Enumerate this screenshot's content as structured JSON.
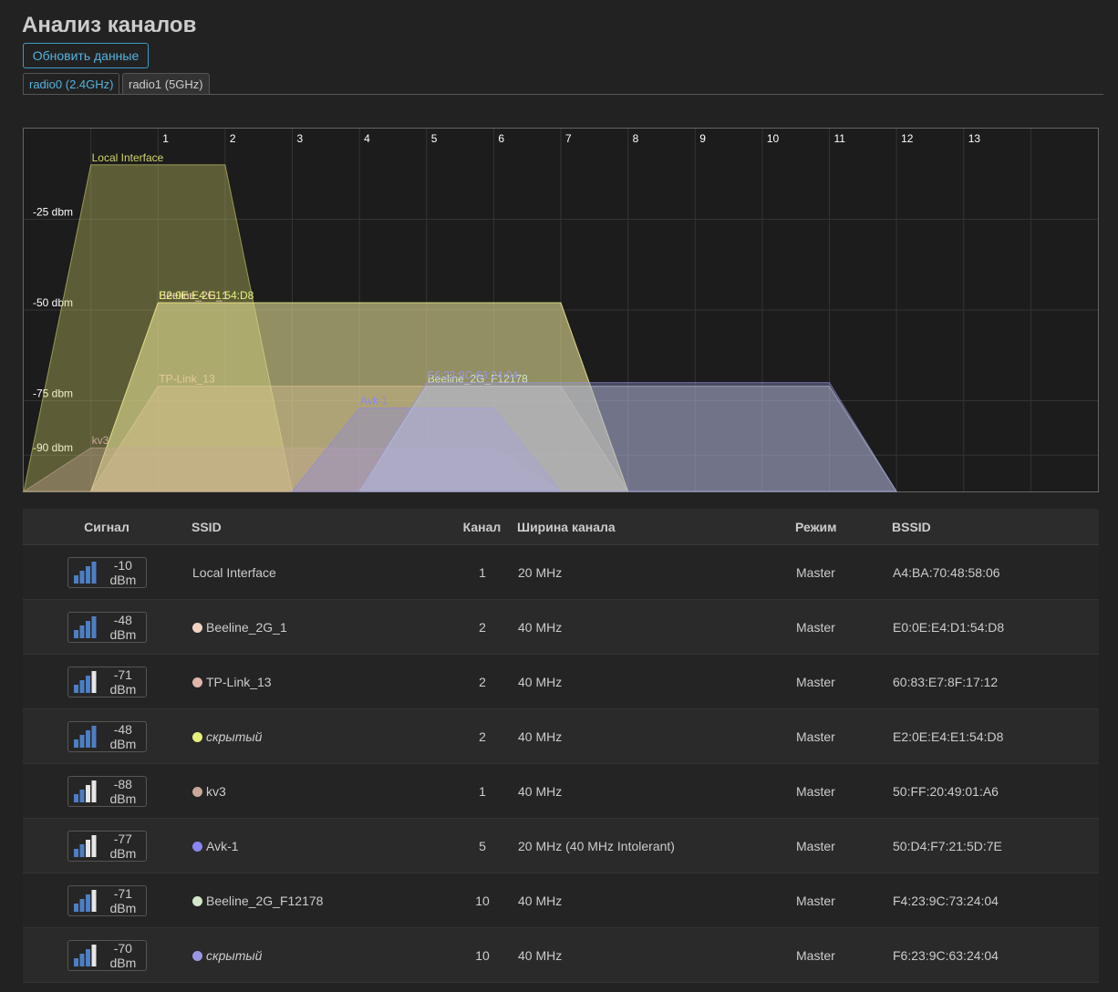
{
  "header": {
    "title": "Анализ каналов",
    "refresh_button": "Обновить данные",
    "tabs": [
      "radio0 (2.4GHz)",
      "radio1 (5GHz)"
    ]
  },
  "chart_data": {
    "type": "channel-spectrum",
    "xlim": [
      -1,
      15
    ],
    "xticks": [
      1,
      2,
      3,
      4,
      5,
      6,
      7,
      8,
      9,
      10,
      11,
      12,
      13
    ],
    "ylim": [
      -100,
      0
    ],
    "yticks": [
      {
        "value": -25,
        "label": "-25 dbm"
      },
      {
        "value": -50,
        "label": "-50 dbm"
      },
      {
        "value": -75,
        "label": "-75 dbm"
      },
      {
        "value": -90,
        "label": "-90 dbm"
      }
    ],
    "grid": true,
    "series": [
      {
        "name": "Local Interface",
        "color": "#d4d46a",
        "signal": -10,
        "channel": 1,
        "width": 20
      },
      {
        "name": "Beeline_2G_1",
        "color": "#f2d2c2",
        "signal": -48,
        "channel": 2,
        "width": 40
      },
      {
        "name": "TP-Link_13",
        "color": "#e2b4aa",
        "signal": -71,
        "channel": 2,
        "width": 40
      },
      {
        "name": "E2:0E:E4:E1:54:D8",
        "color": "#e6f07c",
        "signal": -48,
        "channel": 2,
        "width": 40
      },
      {
        "name": "kv3",
        "color": "#c8a898",
        "signal": -88,
        "channel": 1,
        "width": 40
      },
      {
        "name": "Avk-1",
        "color": "#8a86f2",
        "signal": -77,
        "channel": 5,
        "width": 20
      },
      {
        "name": "Beeline_2G_F12178",
        "color": "#d2e6cc",
        "signal": -71,
        "channel": 10,
        "width": 40
      },
      {
        "name": "F6:23:9C:63:24:04",
        "color": "#9a98e2",
        "signal": -70,
        "channel": 10,
        "width": 40
      }
    ]
  },
  "table": {
    "columns": [
      "Сигнал",
      "SSID",
      "Канал",
      "Ширина канала",
      "Режим",
      "BSSID"
    ],
    "rows": [
      {
        "signal": "-10 dBm",
        "ssid": "Local Interface",
        "channel": "1",
        "width": "20 MHz",
        "mode": "Master",
        "bssid": "A4:BA:70:48:58:06"
      },
      {
        "signal": "-48 dBm",
        "ssid": "Beeline_2G_1",
        "dot": "#f2d2c2",
        "channel": "2",
        "width": "40 MHz",
        "mode": "Master",
        "bssid": "E0:0E:E4:D1:54:D8"
      },
      {
        "signal": "-71 dBm",
        "ssid": "TP-Link_13",
        "dot": "#e2b4aa",
        "channel": "2",
        "width": "40 MHz",
        "mode": "Master",
        "bssid": "60:83:E7:8F:17:12"
      },
      {
        "signal": "-48 dBm",
        "ssid": "скрытый",
        "italic": true,
        "dot": "#e6f07c",
        "channel": "2",
        "width": "40 MHz",
        "mode": "Master",
        "bssid": "E2:0E:E4:E1:54:D8"
      },
      {
        "signal": "-88 dBm",
        "ssid": "kv3",
        "dot": "#c8a898",
        "channel": "1",
        "width": "40 MHz",
        "mode": "Master",
        "bssid": "50:FF:20:49:01:A6"
      },
      {
        "signal": "-77 dBm",
        "ssid": "Avk-1",
        "dot": "#8a86f2",
        "channel": "5",
        "width": "20 MHz (40 MHz Intolerant)",
        "mode": "Master",
        "bssid": "50:D4:F7:21:5D:7E"
      },
      {
        "signal": "-71 dBm",
        "ssid": "Beeline_2G_F12178",
        "dot": "#d2e6cc",
        "channel": "10",
        "width": "40 MHz",
        "mode": "Master",
        "bssid": "F4:23:9C:73:24:04"
      },
      {
        "signal": "-70 dBm",
        "ssid": "скрытый",
        "italic": true,
        "dot": "#9a98e2",
        "channel": "10",
        "width": "40 MHz",
        "mode": "Master",
        "bssid": "F6:23:9C:63:24:04"
      }
    ]
  }
}
